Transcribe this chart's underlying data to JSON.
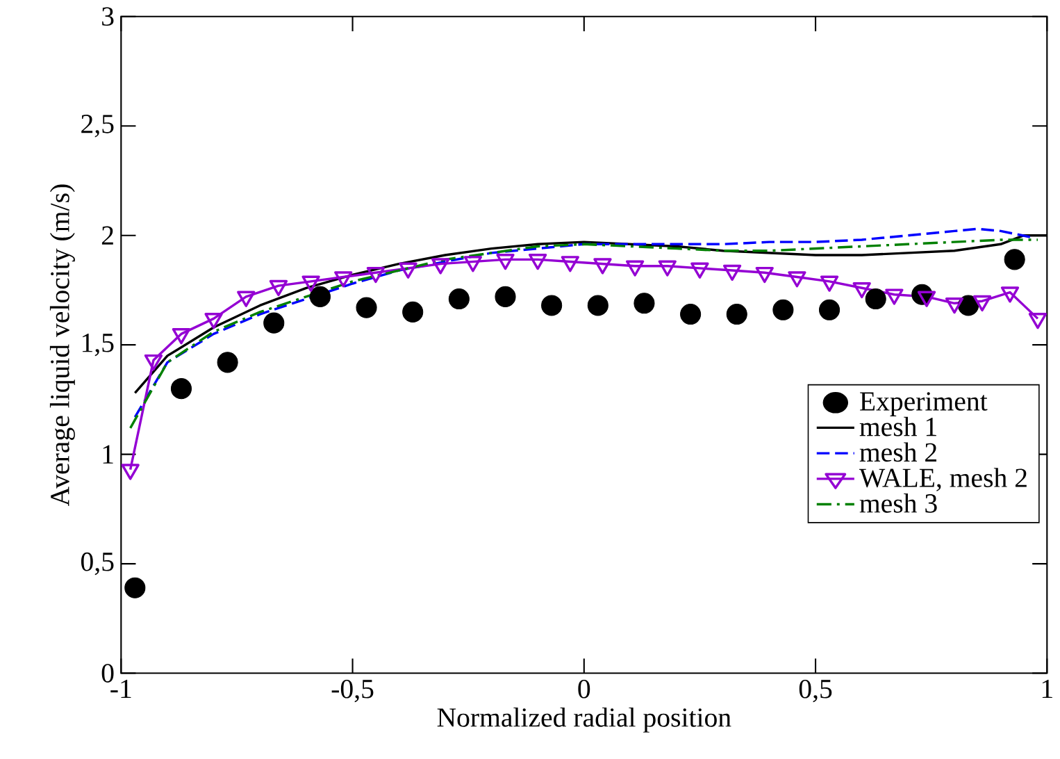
{
  "chart_data": {
    "type": "line",
    "xlabel": "Normalized radial position",
    "ylabel": "Average liquid velocity (m/s)",
    "xlim": [
      -1,
      1
    ],
    "ylim": [
      0,
      3
    ],
    "xticks": [
      -1,
      {
        "value": -0.5,
        "label": "-0,5"
      },
      0,
      {
        "value": 0.5,
        "label": "0,5"
      },
      1
    ],
    "yticks": [
      0,
      {
        "value": 0.5,
        "label": "0,5"
      },
      1,
      {
        "value": 1.5,
        "label": "1,5"
      },
      2,
      {
        "value": 2.5,
        "label": "2,5"
      },
      3
    ],
    "legend": "right",
    "grid": false,
    "series": [
      {
        "name": "Experiment",
        "type": "scatter",
        "marker": "circle",
        "color": "#000000",
        "x": [
          -0.97,
          -0.87,
          -0.77,
          -0.67,
          -0.57,
          -0.47,
          -0.37,
          -0.27,
          -0.17,
          -0.07,
          0.03,
          0.13,
          0.23,
          0.33,
          0.43,
          0.53,
          0.63,
          0.73,
          0.83,
          0.93
        ],
        "values": [
          0.39,
          1.3,
          1.42,
          1.6,
          1.72,
          1.67,
          1.65,
          1.71,
          1.72,
          1.68,
          1.68,
          1.69,
          1.64,
          1.64,
          1.66,
          1.66,
          1.71,
          1.73,
          1.68,
          1.89
        ]
      },
      {
        "name": "mesh 1",
        "line_style": "solid",
        "color": "#000000",
        "x": [
          -0.97,
          -0.9,
          -0.8,
          -0.7,
          -0.6,
          -0.5,
          -0.4,
          -0.3,
          -0.2,
          -0.1,
          0,
          0.1,
          0.2,
          0.3,
          0.4,
          0.5,
          0.6,
          0.7,
          0.8,
          0.9,
          0.95,
          1.0
        ],
        "values": [
          1.28,
          1.45,
          1.58,
          1.68,
          1.76,
          1.82,
          1.87,
          1.91,
          1.94,
          1.96,
          1.97,
          1.96,
          1.95,
          1.93,
          1.92,
          1.91,
          1.91,
          1.92,
          1.93,
          1.96,
          2.0,
          2.0
        ]
      },
      {
        "name": "mesh 2",
        "line_style": "dashed",
        "color": "#0000ff",
        "x": [
          -0.97,
          -0.9,
          -0.8,
          -0.7,
          -0.6,
          -0.5,
          -0.4,
          -0.3,
          -0.2,
          -0.1,
          0,
          0.1,
          0.2,
          0.3,
          0.4,
          0.5,
          0.6,
          0.7,
          0.8,
          0.85,
          0.9,
          0.97
        ],
        "values": [
          1.17,
          1.42,
          1.55,
          1.64,
          1.71,
          1.78,
          1.84,
          1.88,
          1.92,
          1.94,
          1.96,
          1.96,
          1.96,
          1.96,
          1.97,
          1.97,
          1.98,
          2.0,
          2.02,
          2.03,
          2.02,
          1.99
        ]
      },
      {
        "name": "WALE, mesh 2",
        "line_style": "solid",
        "marker": "triangle",
        "color": "#9400d3",
        "x": [
          -0.98,
          -0.93,
          -0.87,
          -0.8,
          -0.73,
          -0.66,
          -0.59,
          -0.52,
          -0.45,
          -0.38,
          -0.31,
          -0.24,
          -0.17,
          -0.1,
          -0.03,
          0.04,
          0.11,
          0.18,
          0.25,
          0.32,
          0.39,
          0.46,
          0.53,
          0.6,
          0.67,
          0.74,
          0.8,
          0.86,
          0.92,
          0.98
        ],
        "values": [
          0.93,
          1.43,
          1.55,
          1.62,
          1.72,
          1.77,
          1.79,
          1.81,
          1.83,
          1.85,
          1.87,
          1.88,
          1.89,
          1.89,
          1.88,
          1.87,
          1.86,
          1.86,
          1.85,
          1.84,
          1.83,
          1.81,
          1.79,
          1.76,
          1.73,
          1.72,
          1.69,
          1.7,
          1.74,
          1.62
        ]
      },
      {
        "name": "mesh 3",
        "line_style": "dashdot",
        "color": "#008000",
        "x": [
          -0.98,
          -0.9,
          -0.8,
          -0.7,
          -0.6,
          -0.5,
          -0.4,
          -0.3,
          -0.2,
          -0.1,
          0,
          0.1,
          0.2,
          0.3,
          0.4,
          0.5,
          0.6,
          0.7,
          0.8,
          0.9,
          0.98
        ],
        "values": [
          1.12,
          1.42,
          1.56,
          1.65,
          1.72,
          1.79,
          1.84,
          1.89,
          1.92,
          1.95,
          1.96,
          1.95,
          1.94,
          1.93,
          1.93,
          1.94,
          1.95,
          1.96,
          1.97,
          1.98,
          1.98
        ]
      }
    ]
  }
}
